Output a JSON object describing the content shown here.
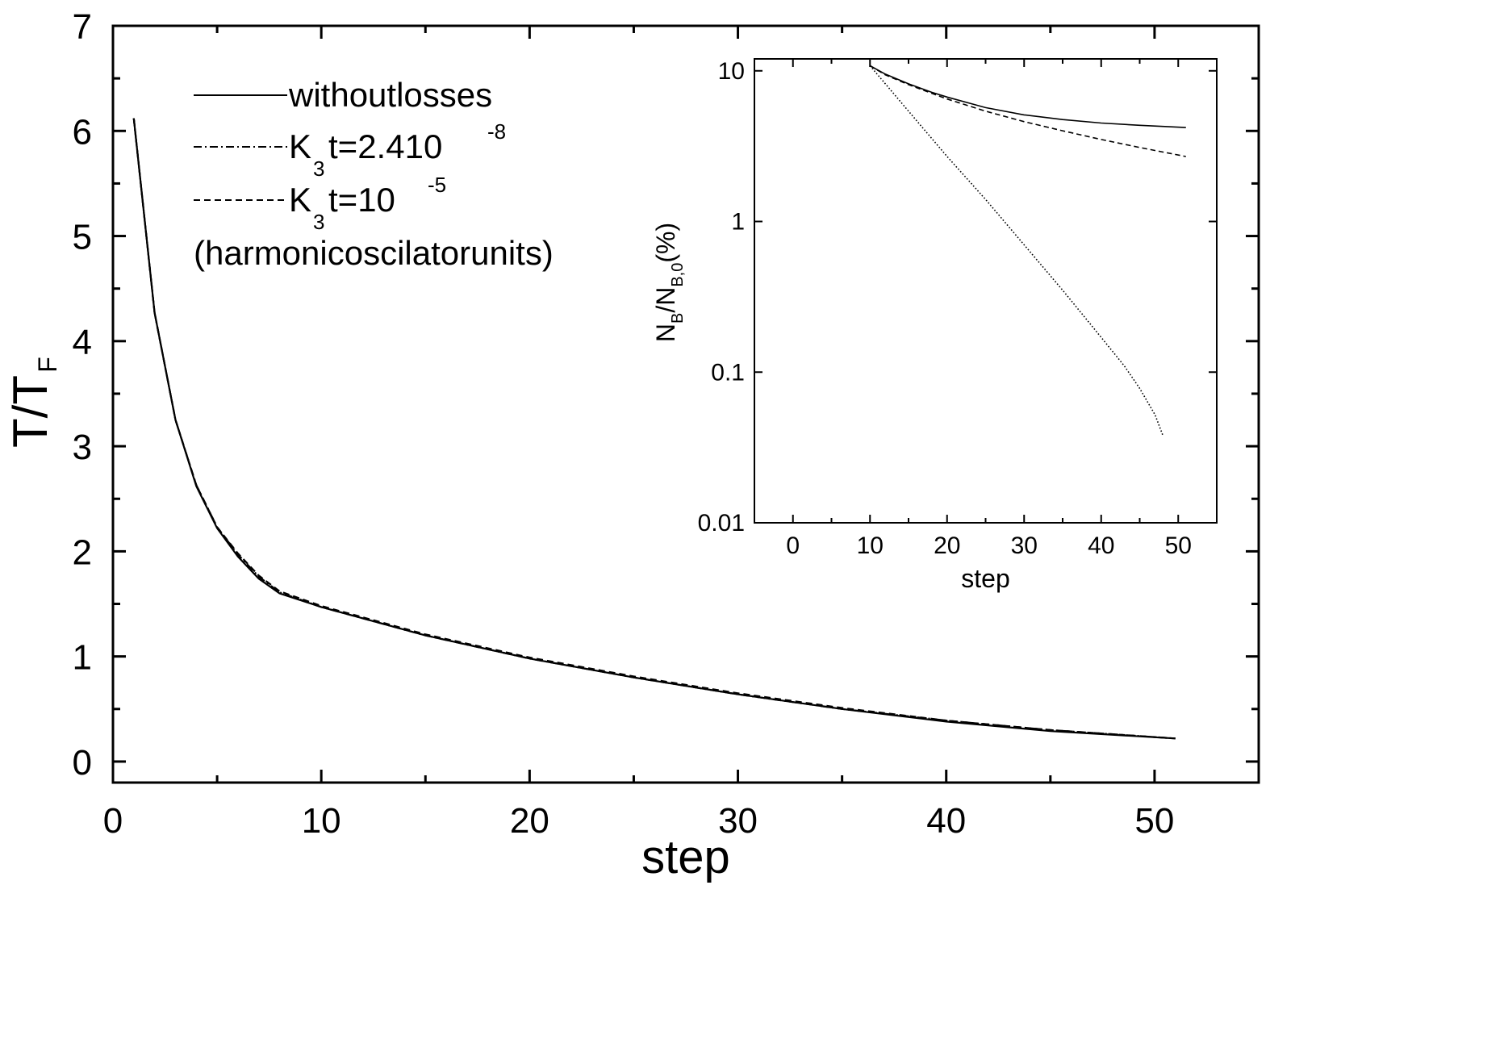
{
  "chart_data": [
    {
      "type": "line",
      "xlabel": "step",
      "ylabel": "T/T",
      "ylabel_sub": "F",
      "xlim": [
        0,
        55
      ],
      "ylim": [
        -0.2,
        7
      ],
      "xticks": [
        0,
        10,
        20,
        30,
        40,
        50
      ],
      "yticks": [
        0,
        1,
        2,
        3,
        4,
        5,
        6,
        7
      ],
      "legend_position": "top-left",
      "legend_note": "(harmonicoscilatorunits)",
      "legend": [
        {
          "parts": [
            "withoutlosses"
          ]
        },
        {
          "parts": [
            "K",
            "3",
            "t=2.410",
            "-8"
          ]
        },
        {
          "parts": [
            "K",
            "3",
            "t=10",
            "-5"
          ]
        }
      ],
      "series": [
        {
          "style": "solid",
          "x": [
            1,
            2,
            3,
            4,
            5,
            6,
            7,
            8,
            10,
            15,
            20,
            25,
            30,
            35,
            40,
            45,
            51
          ],
          "y": [
            6.12,
            4.27,
            3.25,
            2.62,
            2.22,
            1.95,
            1.74,
            1.6,
            1.47,
            1.2,
            0.98,
            0.8,
            0.64,
            0.5,
            0.38,
            0.29,
            0.22
          ]
        },
        {
          "style": "dashdot",
          "x": [
            1,
            2,
            3,
            4,
            5,
            6,
            7,
            8,
            10,
            15,
            20,
            25,
            30,
            35,
            40,
            45,
            51
          ],
          "y": [
            6.12,
            4.27,
            3.25,
            2.63,
            2.23,
            1.97,
            1.76,
            1.61,
            1.47,
            1.2,
            0.98,
            0.8,
            0.64,
            0.5,
            0.39,
            0.3,
            0.22
          ]
        },
        {
          "style": "dashed",
          "x": [
            1,
            2,
            3,
            4,
            5,
            6,
            7,
            8,
            10,
            15,
            20,
            25,
            30,
            35,
            40,
            45,
            51
          ],
          "y": [
            6.12,
            4.27,
            3.25,
            2.63,
            2.23,
            1.98,
            1.77,
            1.62,
            1.48,
            1.21,
            0.99,
            0.81,
            0.65,
            0.51,
            0.39,
            0.3,
            0.22
          ]
        }
      ]
    },
    {
      "type": "line",
      "xlabel": "step",
      "ylabel_parts": [
        "N",
        "B",
        "/N",
        "B,0",
        "(%)"
      ],
      "xlim": [
        -5,
        55
      ],
      "ylim": [
        0.01,
        12
      ],
      "yscale": "log",
      "xticks": [
        0,
        10,
        20,
        30,
        40,
        50
      ],
      "yticks": [
        0.01,
        0.1,
        1,
        10
      ],
      "ytick_labels": [
        "0.01",
        "0.1",
        "1",
        "10"
      ],
      "series": [
        {
          "style": "solid",
          "x": [
            10,
            12,
            15,
            18,
            20,
            25,
            30,
            35,
            40,
            45,
            51
          ],
          "y": [
            10.8,
            9.5,
            8.2,
            7.2,
            6.7,
            5.7,
            5.1,
            4.75,
            4.5,
            4.35,
            4.2
          ]
        },
        {
          "style": "dashed",
          "x": [
            10,
            12,
            15,
            18,
            20,
            25,
            30,
            35,
            40,
            45,
            51
          ],
          "y": [
            10.8,
            9.4,
            8.1,
            7.1,
            6.5,
            5.4,
            4.6,
            4.0,
            3.5,
            3.1,
            2.7
          ]
        },
        {
          "style": "dotted",
          "x": [
            10,
            15,
            20,
            25,
            30,
            35,
            40,
            43,
            45,
            47,
            48
          ],
          "y": [
            10.8,
            5.4,
            2.7,
            1.4,
            0.7,
            0.35,
            0.17,
            0.11,
            0.078,
            0.052,
            0.038
          ]
        }
      ]
    }
  ]
}
